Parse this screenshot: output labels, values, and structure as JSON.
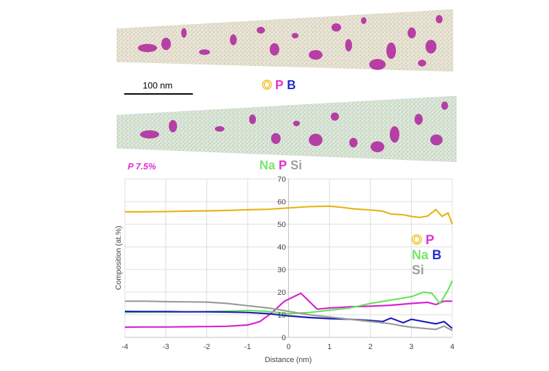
{
  "figure": {
    "scale_bar_label": "100 nm",
    "top_legend": [
      {
        "text": "O",
        "color": "#f2c12e",
        "outline": true
      },
      {
        "text": "P",
        "color": "#e12fd3",
        "outline": false
      },
      {
        "text": "B",
        "color": "#2430c8",
        "outline": false
      }
    ],
    "mid_legend": [
      {
        "text": "Na",
        "color": "#7de36f"
      },
      {
        "text": "P",
        "color": "#e12fd3"
      },
      {
        "text": "Si",
        "color": "#a0a0a0"
      }
    ],
    "p_concentration_label": "P 7.5%"
  },
  "chart_data": {
    "type": "line",
    "xlabel": "Distance (nm)",
    "ylabel": "Composition (at.%)",
    "xlim": [
      -4,
      4
    ],
    "ylim": [
      0,
      70
    ],
    "x_ticks": [
      -4,
      -3,
      -2,
      -1,
      0,
      1,
      2,
      3,
      4
    ],
    "y_ticks": [
      0,
      10,
      20,
      30,
      40,
      50,
      60,
      70
    ],
    "grid": true,
    "legend_placement": "right",
    "legend_rows": [
      [
        {
          "text": "O",
          "color": "#f2c12e"
        },
        {
          "text": "P",
          "color": "#e12fd3"
        }
      ],
      [
        {
          "text": "Na",
          "color": "#7de36f"
        },
        {
          "text": "B",
          "color": "#2430c8"
        }
      ],
      [
        {
          "text": "Si",
          "color": "#a0a0a0"
        }
      ]
    ],
    "series": [
      {
        "name": "O",
        "color": "#e6b416",
        "points": [
          [
            -4,
            55.5
          ],
          [
            -3.5,
            55.5
          ],
          [
            -3,
            55.6
          ],
          [
            -2.5,
            55.8
          ],
          [
            -2,
            55.9
          ],
          [
            -1.5,
            56.1
          ],
          [
            -1,
            56.4
          ],
          [
            -0.5,
            56.6
          ],
          [
            0,
            57.2
          ],
          [
            0.5,
            57.8
          ],
          [
            1,
            58
          ],
          [
            1.3,
            57.5
          ],
          [
            1.6,
            56.8
          ],
          [
            2,
            56.3
          ],
          [
            2.3,
            55.8
          ],
          [
            2.5,
            54.5
          ],
          [
            2.8,
            54.2
          ],
          [
            3,
            53.5
          ],
          [
            3.2,
            53
          ],
          [
            3.4,
            53.6
          ],
          [
            3.6,
            56.5
          ],
          [
            3.75,
            53.5
          ],
          [
            3.9,
            55
          ],
          [
            4,
            50
          ]
        ]
      },
      {
        "name": "P",
        "color": "#d91fd0",
        "points": [
          [
            -4,
            4.5
          ],
          [
            -3.5,
            4.6
          ],
          [
            -3,
            4.6
          ],
          [
            -2.5,
            4.7
          ],
          [
            -2,
            4.8
          ],
          [
            -1.5,
            4.9
          ],
          [
            -1,
            5.5
          ],
          [
            -0.7,
            7
          ],
          [
            -0.4,
            11
          ],
          [
            -0.1,
            16
          ],
          [
            0.3,
            19.5
          ],
          [
            0.7,
            12.5
          ],
          [
            1,
            13
          ],
          [
            1.5,
            13.5
          ],
          [
            2,
            13.8
          ],
          [
            2.5,
            14.2
          ],
          [
            3,
            15
          ],
          [
            3.4,
            15.5
          ],
          [
            3.6,
            14.5
          ],
          [
            3.8,
            16
          ],
          [
            4,
            16
          ]
        ]
      },
      {
        "name": "Na",
        "color": "#66e35a",
        "points": [
          [
            -4,
            11
          ],
          [
            -3.5,
            11.2
          ],
          [
            -3,
            11.2
          ],
          [
            -2.5,
            11.3
          ],
          [
            -2,
            11.4
          ],
          [
            -1.5,
            11.6
          ],
          [
            -1,
            11.9
          ],
          [
            -0.5,
            11.5
          ],
          [
            0,
            10.5
          ],
          [
            0.5,
            11
          ],
          [
            1,
            12
          ],
          [
            1.5,
            13
          ],
          [
            2,
            15
          ],
          [
            2.5,
            16.5
          ],
          [
            3,
            18
          ],
          [
            3.3,
            20
          ],
          [
            3.5,
            19.5
          ],
          [
            3.7,
            15
          ],
          [
            3.9,
            21
          ],
          [
            4,
            25
          ]
        ]
      },
      {
        "name": "B",
        "color": "#1b1ab8",
        "points": [
          [
            -4,
            11.5
          ],
          [
            -3.5,
            11.4
          ],
          [
            -3,
            11.4
          ],
          [
            -2.5,
            11.3
          ],
          [
            -2,
            11.3
          ],
          [
            -1.5,
            11.2
          ],
          [
            -1,
            11
          ],
          [
            -0.5,
            10.5
          ],
          [
            0,
            9.5
          ],
          [
            0.5,
            8.8
          ],
          [
            1,
            8.3
          ],
          [
            1.5,
            8
          ],
          [
            2,
            7.5
          ],
          [
            2.3,
            7
          ],
          [
            2.5,
            8.5
          ],
          [
            2.8,
            6.5
          ],
          [
            3,
            8
          ],
          [
            3.3,
            7
          ],
          [
            3.6,
            6
          ],
          [
            3.8,
            7
          ],
          [
            4,
            4
          ]
        ]
      },
      {
        "name": "Si",
        "color": "#9a9a9a",
        "points": [
          [
            -4,
            16
          ],
          [
            -3.5,
            16
          ],
          [
            -3,
            15.8
          ],
          [
            -2.5,
            15.7
          ],
          [
            -2,
            15.6
          ],
          [
            -1.5,
            15
          ],
          [
            -1,
            14
          ],
          [
            -0.5,
            13
          ],
          [
            0,
            11.5
          ],
          [
            0.5,
            10
          ],
          [
            1,
            9
          ],
          [
            1.5,
            8
          ],
          [
            2,
            7
          ],
          [
            2.3,
            6.5
          ],
          [
            2.5,
            6
          ],
          [
            2.8,
            5
          ],
          [
            3,
            4.5
          ],
          [
            3.3,
            4
          ],
          [
            3.6,
            3.5
          ],
          [
            3.8,
            5
          ],
          [
            4,
            3
          ]
        ]
      }
    ]
  }
}
